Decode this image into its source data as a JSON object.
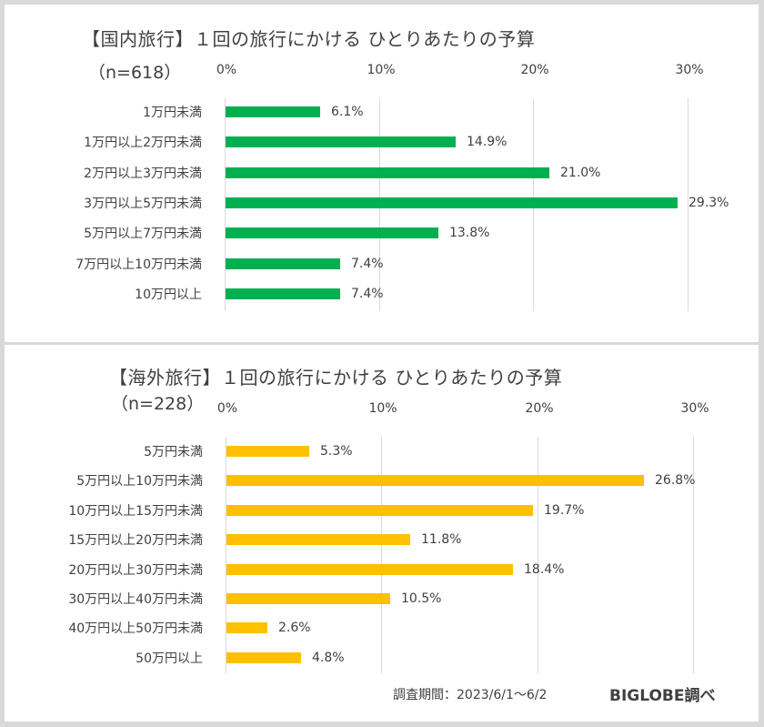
{
  "colors": {
    "domestic_bar": "#00b050",
    "overseas_bar": "#ffc000",
    "grid": "#d9d9d9",
    "text": "#404040"
  },
  "chart_data": [
    {
      "type": "bar",
      "orientation": "horizontal",
      "title": "【国内旅行】１回の旅行にかける ひとりあたりの予算",
      "subtitle": "（n=618）",
      "xlim": [
        0,
        30
      ],
      "xticks": [
        "0%",
        "10%",
        "20%",
        "30%"
      ],
      "xtick_values": [
        0,
        10,
        20,
        30
      ],
      "grid": true,
      "categories": [
        "1万円未満",
        "1万円以上2万円未満",
        "2万円以上3万円未満",
        "3万円以上5万円未満",
        "5万円以上7万円未満",
        "7万円以上10万円未満",
        "10万円以上"
      ],
      "values": [
        6.1,
        14.9,
        21.0,
        29.3,
        13.8,
        7.4,
        7.4
      ],
      "labels": [
        "6.1%",
        "14.9%",
        "21.0%",
        "29.3%",
        "13.8%",
        "7.4%",
        "7.4%"
      ]
    },
    {
      "type": "bar",
      "orientation": "horizontal",
      "title": "【海外旅行】１回の旅行にかける ひとりあたりの予算",
      "subtitle": "（n=228）",
      "xlim": [
        0,
        30
      ],
      "xticks": [
        "0%",
        "10%",
        "20%",
        "30%"
      ],
      "xtick_values": [
        0,
        10,
        20,
        30
      ],
      "grid": true,
      "categories": [
        "5万円未満",
        "5万円以上10万円未満",
        "10万円以上15万円未満",
        "15万円以上20万円未満",
        "20万円以上30万円未満",
        "30万円以上40万円未満",
        "40万円以上50万円未満",
        "50万円以上"
      ],
      "values": [
        5.3,
        26.8,
        19.7,
        11.8,
        18.4,
        10.5,
        2.6,
        4.8
      ],
      "labels": [
        "5.3%",
        "26.8%",
        "19.7%",
        "11.8%",
        "18.4%",
        "10.5%",
        "2.6%",
        "4.8%"
      ]
    }
  ],
  "footer": {
    "period": "調査期間：2023/6/1～6/2",
    "source": "BIGLOBE調べ"
  }
}
